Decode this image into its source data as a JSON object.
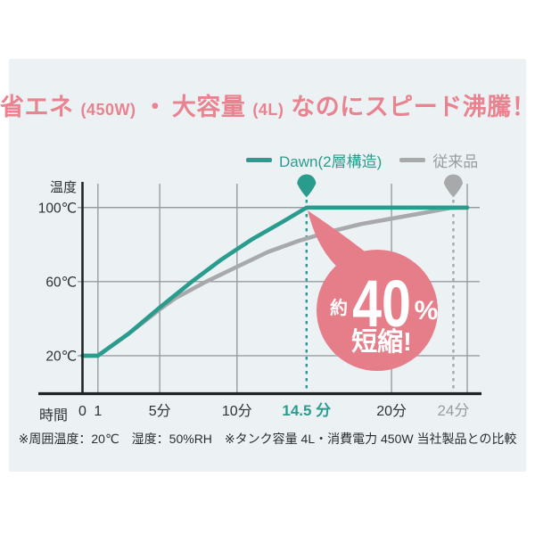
{
  "title": {
    "parts": [
      {
        "text": "省エネ",
        "size": "big"
      },
      {
        "text": "(450W)",
        "size": "small"
      },
      {
        "text": "・",
        "size": "big"
      },
      {
        "text": "大容量",
        "size": "big"
      },
      {
        "text": "(4L)",
        "size": "small"
      },
      {
        "text": "なのにスピード沸騰！",
        "size": "big"
      }
    ]
  },
  "legend": {
    "items": [
      {
        "label": "Dawn(2層構造)",
        "color": "#2a9c8e"
      },
      {
        "label": "従来品",
        "color": "#a7a9ab"
      }
    ]
  },
  "badge": {
    "prefix": "約",
    "value": "40",
    "unit": "%",
    "suffix": "短縮!"
  },
  "footnote": "※周囲温度：20℃　湿度：50%RH　※タンク容量 4L・消費電力 450W 当社製品との比較",
  "colors": {
    "teal": "#2a9c8e",
    "gray_line": "#a7a9ab",
    "pink": "#e67e8a",
    "panel_bg": "#ecf2f4",
    "grid": "#979ca0",
    "axis": "#202427"
  },
  "chart_data": {
    "type": "line",
    "title": "省エネ(450W)・大容量(4L) なのにスピード沸騰！",
    "x_axis": {
      "title": "時間",
      "unit": "分",
      "xlim": [
        0,
        24.9
      ],
      "gridline_ts": [
        1,
        5,
        10,
        20
      ],
      "ticks": [
        {
          "t": 0,
          "label": "0"
        },
        {
          "t": 1,
          "label": "1"
        },
        {
          "t": 5,
          "label": "5分"
        },
        {
          "t": 10,
          "label": "10分"
        },
        {
          "t": 14.5,
          "label": "14.5 分",
          "emphasis": "dawn"
        },
        {
          "t": 20,
          "label": "20分"
        },
        {
          "t": 24,
          "label": "24分",
          "emphasis": "legacy"
        }
      ]
    },
    "y_axis": {
      "title": "温度",
      "unit": "℃",
      "ylim": [
        0,
        113
      ],
      "ticks": [
        {
          "v": 20,
          "label": "20℃"
        },
        {
          "v": 60,
          "label": "60℃"
        },
        {
          "v": 100,
          "label": "100℃"
        }
      ]
    },
    "grid": true,
    "legend_position": "top",
    "series": [
      {
        "id": "legacy",
        "name": "従来品",
        "color": "#a7a9ab",
        "boil_time_min": 24,
        "points": [
          [
            0,
            20
          ],
          [
            1,
            20
          ],
          [
            3,
            32
          ],
          [
            5,
            45
          ],
          [
            6,
            51
          ],
          [
            8,
            60
          ],
          [
            10,
            68
          ],
          [
            12,
            76
          ],
          [
            14,
            82
          ],
          [
            16,
            87
          ],
          [
            18,
            91
          ],
          [
            20,
            94
          ],
          [
            22,
            97
          ],
          [
            23.8,
            99.8
          ],
          [
            24.9,
            100
          ]
        ]
      },
      {
        "id": "dawn",
        "name": "Dawn(2層構造)",
        "color": "#2a9c8e",
        "boil_time_min": 14.5,
        "points": [
          [
            0,
            20
          ],
          [
            1,
            20
          ],
          [
            3,
            32
          ],
          [
            5,
            46
          ],
          [
            7,
            59.5
          ],
          [
            9,
            72
          ],
          [
            11,
            83
          ],
          [
            13,
            92.5
          ],
          [
            14.5,
            100
          ],
          [
            24.9,
            100
          ]
        ]
      }
    ],
    "markers": [
      {
        "t": 14.5,
        "series": "dawn",
        "color": "#2a9c8e"
      },
      {
        "t": 24,
        "series": "legacy",
        "color": "#a7a9ab"
      }
    ],
    "annotation": {
      "text": "約40%短縮!",
      "reduction_percent": 40
    }
  }
}
